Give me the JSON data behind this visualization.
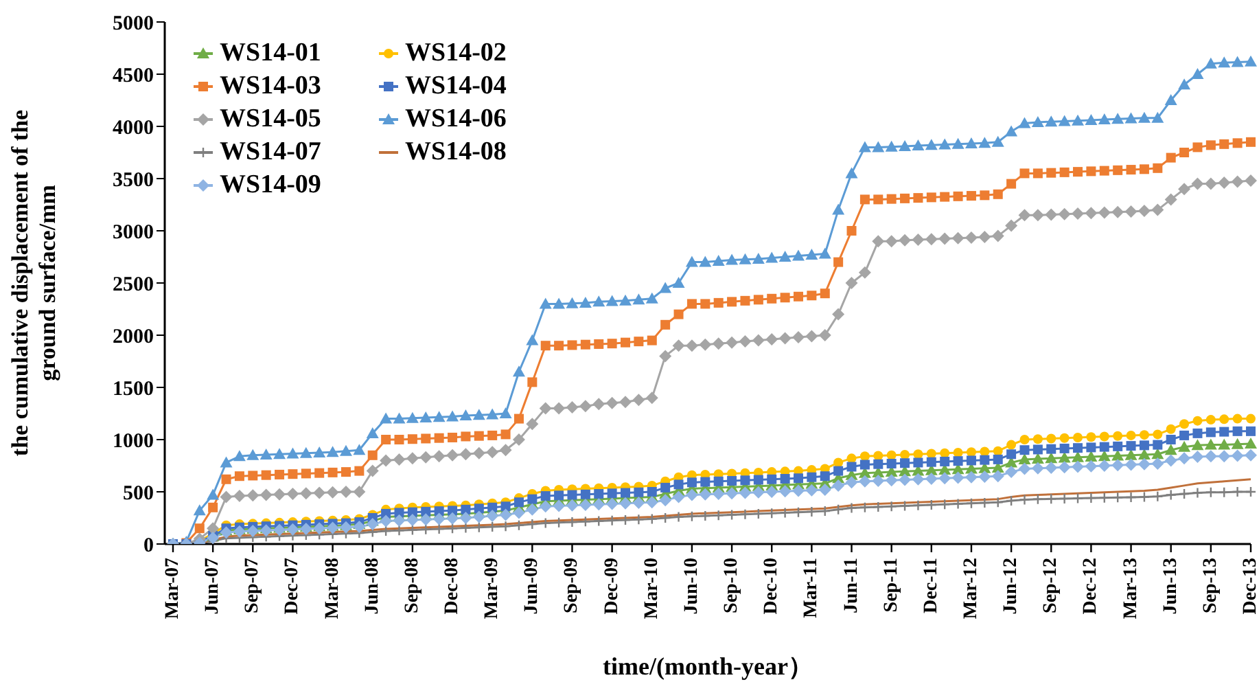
{
  "chart_data": {
    "type": "line",
    "xlabel": "time/(month-year）",
    "ylabel": "the cumulative displacement of the ground surface/mm",
    "categories": [
      "Mar-07",
      null,
      null,
      "Jun-07",
      null,
      null,
      "Sep-07",
      null,
      null,
      "Dec-07",
      null,
      null,
      "Mar-08",
      null,
      null,
      "Jun-08",
      null,
      null,
      "Sep-08",
      null,
      null,
      "Dec-08",
      null,
      null,
      "Mar-09",
      null,
      null,
      "Jun-09",
      null,
      null,
      "Sep-09",
      null,
      null,
      "Dec-09",
      null,
      null,
      "Mar-10",
      null,
      null,
      "Jun-10",
      null,
      null,
      "Sep-10",
      null,
      null,
      "Dec-10",
      null,
      null,
      "Mar-11",
      null,
      null,
      "Jun-11",
      null,
      null,
      "Sep-11",
      null,
      null,
      "Dec-11",
      null,
      null,
      "Mar-12",
      null,
      null,
      "Jun-12",
      null,
      null,
      "Sep-12",
      null,
      null,
      "Dec-12",
      null,
      null,
      "Mar-13",
      null,
      null,
      "Jun-13",
      null,
      null,
      "Sep-13",
      null,
      null,
      "Dec-13"
    ],
    "ylim": [
      0,
      5000
    ],
    "yticks": [
      0,
      500,
      1000,
      1500,
      2000,
      2500,
      3000,
      3500,
      4000,
      4500,
      5000
    ],
    "grid": false,
    "legend": "top left",
    "series": [
      {
        "name": "WS14-01",
        "color": "#70ad47",
        "marker": "triangle",
        "values": [
          0,
          0,
          20,
          70,
          130,
          140,
          145,
          150,
          155,
          160,
          165,
          170,
          175,
          180,
          190,
          220,
          260,
          265,
          270,
          275,
          280,
          285,
          290,
          300,
          310,
          320,
          350,
          380,
          410,
          415,
          420,
          425,
          430,
          435,
          440,
          445,
          450,
          480,
          510,
          530,
          535,
          540,
          545,
          550,
          555,
          560,
          565,
          570,
          575,
          580,
          630,
          660,
          680,
          685,
          690,
          695,
          700,
          705,
          710,
          715,
          720,
          725,
          730,
          780,
          810,
          815,
          820,
          825,
          830,
          835,
          840,
          845,
          850,
          855,
          860,
          900,
          930,
          945,
          950,
          950,
          955,
          960
        ]
      },
      {
        "name": "WS14-02",
        "color": "#ffc000",
        "marker": "circle",
        "values": [
          0,
          0,
          30,
          100,
          180,
          190,
          195,
          200,
          205,
          210,
          215,
          220,
          225,
          230,
          240,
          280,
          330,
          340,
          350,
          355,
          360,
          365,
          370,
          380,
          390,
          400,
          440,
          480,
          510,
          520,
          525,
          530,
          535,
          540,
          545,
          550,
          560,
          600,
          640,
          660,
          665,
          670,
          675,
          680,
          685,
          690,
          695,
          700,
          710,
          720,
          780,
          820,
          840,
          845,
          850,
          855,
          860,
          865,
          870,
          875,
          880,
          885,
          890,
          950,
          1000,
          1005,
          1010,
          1015,
          1020,
          1025,
          1030,
          1035,
          1040,
          1045,
          1050,
          1100,
          1150,
          1180,
          1190,
          1195,
          1200,
          1200
        ]
      },
      {
        "name": "WS14-03",
        "color": "#ed7d31",
        "marker": "square",
        "values": [
          0,
          10,
          150,
          350,
          620,
          650,
          655,
          660,
          665,
          670,
          675,
          680,
          685,
          690,
          700,
          850,
          1000,
          1000,
          1005,
          1010,
          1015,
          1020,
          1030,
          1035,
          1040,
          1050,
          1200,
          1550,
          1900,
          1900,
          1905,
          1910,
          1915,
          1920,
          1930,
          1940,
          1950,
          2100,
          2200,
          2300,
          2300,
          2310,
          2320,
          2330,
          2340,
          2350,
          2360,
          2370,
          2380,
          2400,
          2700,
          3000,
          3300,
          3300,
          3305,
          3310,
          3315,
          3320,
          3325,
          3330,
          3335,
          3340,
          3350,
          3450,
          3550,
          3550,
          3555,
          3560,
          3565,
          3570,
          3575,
          3580,
          3585,
          3590,
          3600,
          3700,
          3750,
          3800,
          3820,
          3830,
          3840,
          3850
        ]
      },
      {
        "name": "WS14-04",
        "color": "#4472c4",
        "marker": "square",
        "values": [
          0,
          0,
          20,
          80,
          150,
          160,
          165,
          170,
          175,
          180,
          185,
          190,
          195,
          200,
          210,
          250,
          290,
          300,
          305,
          310,
          315,
          320,
          330,
          340,
          350,
          360,
          400,
          430,
          460,
          465,
          470,
          475,
          480,
          485,
          490,
          495,
          500,
          540,
          570,
          590,
          595,
          600,
          605,
          610,
          615,
          620,
          625,
          630,
          640,
          650,
          700,
          740,
          760,
          765,
          770,
          775,
          780,
          785,
          790,
          795,
          800,
          805,
          810,
          860,
          900,
          905,
          910,
          915,
          920,
          925,
          930,
          935,
          940,
          945,
          950,
          1000,
          1040,
          1060,
          1070,
          1075,
          1080,
          1080
        ]
      },
      {
        "name": "WS14-05",
        "color": "#a5a5a5",
        "marker": "diamond",
        "values": [
          0,
          0,
          50,
          150,
          450,
          460,
          465,
          470,
          475,
          480,
          485,
          490,
          495,
          500,
          500,
          700,
          800,
          810,
          820,
          830,
          840,
          850,
          860,
          870,
          880,
          900,
          1000,
          1150,
          1300,
          1300,
          1310,
          1320,
          1340,
          1350,
          1360,
          1380,
          1400,
          1800,
          1900,
          1900,
          1910,
          1920,
          1930,
          1940,
          1950,
          1960,
          1970,
          1980,
          1990,
          2000,
          2200,
          2500,
          2600,
          2900,
          2900,
          2910,
          2915,
          2920,
          2925,
          2930,
          2935,
          2940,
          2950,
          3050,
          3150,
          3150,
          3155,
          3160,
          3165,
          3170,
          3175,
          3180,
          3185,
          3190,
          3200,
          3300,
          3400,
          3450,
          3450,
          3460,
          3470,
          3480
        ]
      },
      {
        "name": "WS14-06",
        "color": "#5b9bd5",
        "marker": "triangle",
        "values": [
          0,
          20,
          320,
          470,
          780,
          840,
          850,
          855,
          860,
          865,
          870,
          875,
          880,
          890,
          900,
          1060,
          1200,
          1200,
          1205,
          1210,
          1215,
          1220,
          1230,
          1235,
          1240,
          1250,
          1650,
          1950,
          2300,
          2300,
          2305,
          2310,
          2320,
          2325,
          2330,
          2340,
          2350,
          2450,
          2500,
          2700,
          2700,
          2710,
          2720,
          2725,
          2730,
          2740,
          2750,
          2760,
          2770,
          2780,
          3200,
          3550,
          3800,
          3800,
          3805,
          3810,
          3815,
          3820,
          3825,
          3830,
          3835,
          3840,
          3850,
          3950,
          4030,
          4040,
          4045,
          4050,
          4055,
          4060,
          4065,
          4070,
          4075,
          4080,
          4080,
          4250,
          4400,
          4500,
          4600,
          4610,
          4615,
          4620
        ]
      },
      {
        "name": "WS14-07",
        "color": "#7f7f7f",
        "marker": "cross",
        "values": [
          0,
          0,
          5,
          30,
          55,
          60,
          65,
          70,
          75,
          80,
          85,
          90,
          95,
          100,
          105,
          115,
          125,
          130,
          135,
          140,
          145,
          150,
          155,
          160,
          165,
          170,
          180,
          190,
          200,
          205,
          210,
          215,
          220,
          225,
          230,
          235,
          240,
          250,
          260,
          265,
          270,
          275,
          280,
          285,
          290,
          295,
          300,
          305,
          310,
          315,
          330,
          345,
          350,
          355,
          360,
          365,
          370,
          375,
          380,
          385,
          390,
          395,
          400,
          415,
          425,
          430,
          432,
          435,
          437,
          440,
          442,
          445,
          447,
          450,
          455,
          470,
          480,
          490,
          495,
          495,
          500,
          500
        ]
      },
      {
        "name": "WS14-08",
        "color": "#c0703a",
        "marker": "none",
        "values": [
          0,
          0,
          10,
          40,
          70,
          80,
          85,
          90,
          95,
          100,
          105,
          110,
          115,
          120,
          125,
          135,
          145,
          150,
          155,
          160,
          165,
          170,
          175,
          180,
          185,
          190,
          200,
          210,
          220,
          225,
          230,
          235,
          240,
          245,
          250,
          255,
          260,
          270,
          280,
          290,
          295,
          300,
          305,
          310,
          315,
          320,
          325,
          330,
          335,
          340,
          355,
          370,
          380,
          385,
          390,
          395,
          400,
          405,
          410,
          415,
          420,
          425,
          430,
          450,
          465,
          470,
          475,
          480,
          485,
          490,
          495,
          500,
          505,
          510,
          520,
          540,
          560,
          580,
          590,
          600,
          610,
          620
        ]
      },
      {
        "name": "WS14-09",
        "color": "#8fb4e3",
        "marker": "diamond",
        "values": [
          0,
          0,
          10,
          60,
          110,
          120,
          125,
          130,
          135,
          140,
          145,
          150,
          155,
          160,
          165,
          190,
          220,
          225,
          230,
          235,
          240,
          245,
          250,
          260,
          270,
          280,
          300,
          330,
          360,
          365,
          370,
          375,
          380,
          385,
          390,
          395,
          400,
          420,
          450,
          470,
          475,
          480,
          485,
          490,
          495,
          500,
          505,
          510,
          515,
          520,
          560,
          590,
          600,
          605,
          610,
          615,
          620,
          625,
          630,
          635,
          640,
          645,
          650,
          690,
          720,
          725,
          730,
          735,
          740,
          745,
          750,
          755,
          760,
          765,
          770,
          800,
          820,
          835,
          840,
          840,
          845,
          850
        ]
      }
    ]
  }
}
